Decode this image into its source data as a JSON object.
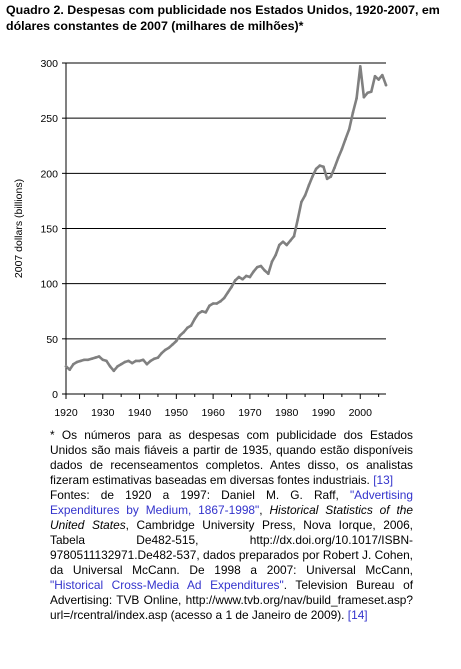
{
  "title": "Quadro 2. Despesas com publicidade nos Estados Unidos, 1920-2007, em dólares constantes de 2007 (milhares de milhões)*",
  "chart_data": {
    "type": "line",
    "title": "",
    "xlabel": "",
    "ylabel": "2007 dollars (billions)",
    "xlim": [
      1920,
      2007
    ],
    "ylim": [
      0,
      300
    ],
    "x_ticks": [
      1920,
      1930,
      1940,
      1950,
      1960,
      1970,
      1980,
      1990,
      2000
    ],
    "y_ticks": [
      0,
      50,
      100,
      150,
      200,
      250,
      300
    ],
    "grid": "horizontal",
    "legend": "none",
    "line_color": "#808080",
    "series": [
      {
        "x": [
          1920,
          1921,
          1922,
          1923,
          1924,
          1925,
          1926,
          1927,
          1928,
          1929,
          1930,
          1931,
          1932,
          1933,
          1934,
          1935,
          1936,
          1937,
          1938,
          1939,
          1940,
          1941,
          1942,
          1943,
          1944,
          1945,
          1946,
          1947,
          1948,
          1949,
          1950,
          1951,
          1952,
          1953,
          1954,
          1955,
          1956,
          1957,
          1958,
          1959,
          1960,
          1961,
          1962,
          1963,
          1964,
          1965,
          1966,
          1967,
          1968,
          1969,
          1970,
          1971,
          1972,
          1973,
          1974,
          1975,
          1976,
          1977,
          1978,
          1979,
          1980,
          1981,
          1982,
          1983,
          1984,
          1985,
          1986,
          1987,
          1988,
          1989,
          1990,
          1991,
          1992,
          1993,
          1994,
          1995,
          1996,
          1997,
          1998,
          1999,
          2000,
          2001,
          2002,
          2003,
          2004,
          2005,
          2006,
          2007
        ],
        "y": [
          25,
          22,
          27,
          29,
          30,
          31,
          31,
          32,
          33,
          34,
          31,
          30,
          25,
          21,
          25,
          27,
          29,
          30,
          28,
          30,
          30,
          31,
          27,
          30,
          32,
          33,
          37,
          40,
          42,
          45,
          48,
          53,
          56,
          60,
          62,
          68,
          73,
          75,
          74,
          80,
          82,
          82,
          84,
          87,
          92,
          97,
          103,
          106,
          104,
          107,
          106,
          111,
          115,
          116,
          112,
          109,
          120,
          126,
          135,
          138,
          135,
          139,
          143,
          158,
          174,
          180,
          189,
          197,
          204,
          207,
          206,
          195,
          197,
          205,
          214,
          222,
          231,
          240,
          255,
          268,
          297,
          269,
          273,
          274,
          288,
          285,
          289,
          280
        ]
      }
    ]
  },
  "notes": {
    "main": "* Os números para as despesas com publicidade dos Estados Unidos são mais fiáveis a partir de 1935, quando estão disponíveis dados de recenseamentos completos. Antes disso, os analistas fizeram estimativas baseadas em diversas fontes industriais.",
    "ref1": "[13]",
    "src_prefix": "Fontes: de 1920 a 1997: Daniel M. G. Raff, ",
    "src_link1": "\"Advertising Expenditures by Medium, 1867-1998\"",
    "src_sep": ", ",
    "src_italic": "Historical Statistics of the United States",
    "src_mid": ", Cambridge University Press, Nova Iorque, 2006, Tabela De482-515, http://dx.doi.org/10.1017/ISBN-9780511132971.De482-537, dados preparados por Robert J. Cohen, da Universal McCann. De 1998 a 2007: Universal McCann, ",
    "src_link2": "\"Historical Cross-Media Ad Expenditures\"",
    "src_end": ". Television Bureau of Advertising: TVB Online, http://www.tvb.org/nav/build_frameset.asp?url=/rcentral/index.asp (acesso a 1 de Janeiro de 2009).",
    "ref2": "[14]"
  }
}
